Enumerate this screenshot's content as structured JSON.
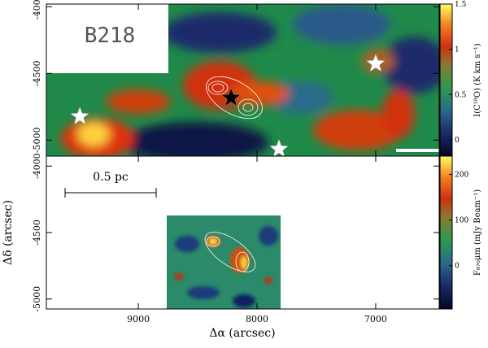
{
  "chart_data": [
    {
      "type": "heatmap",
      "annotation": "B218",
      "xlim": [
        9775,
        6465
      ],
      "ylim": [
        -5120,
        -3980
      ],
      "xticks": [
        9000,
        8000,
        7000
      ],
      "yticks": [
        -4000,
        -4500,
        -5000
      ],
      "colorbar": {
        "label": "I(C¹⁸O) (K km s⁻¹)",
        "lim": [
          -0.18,
          1.5
        ],
        "ticks": [
          0,
          0.5,
          1,
          1.5
        ]
      },
      "points": {
        "x": [
          9493,
          7000,
          7815,
          8219
        ],
        "y": [
          -4823,
          -4427,
          -5067,
          -4683
        ],
        "color": [
          "#ffffff",
          "#ffffff",
          "#ffffff",
          "#000000"
        ]
      }
    },
    {
      "type": "heatmap",
      "annotation": "0.5 pc",
      "xlabel": "Δα (arcsec)",
      "ylabel": "Δδ (arcsec)",
      "xlim": [
        9775,
        6465
      ],
      "ylim": [
        -5075,
        -3925
      ],
      "xticks": [
        9000,
        8000,
        7000
      ],
      "yticks": [
        -4000,
        -4500,
        -5000
      ],
      "colorbar": {
        "label": "F₈₇₀μm (mJy Beam⁻¹)",
        "lim": [
          -95,
          240
        ],
        "ticks": [
          0,
          100,
          200
        ]
      }
    }
  ]
}
